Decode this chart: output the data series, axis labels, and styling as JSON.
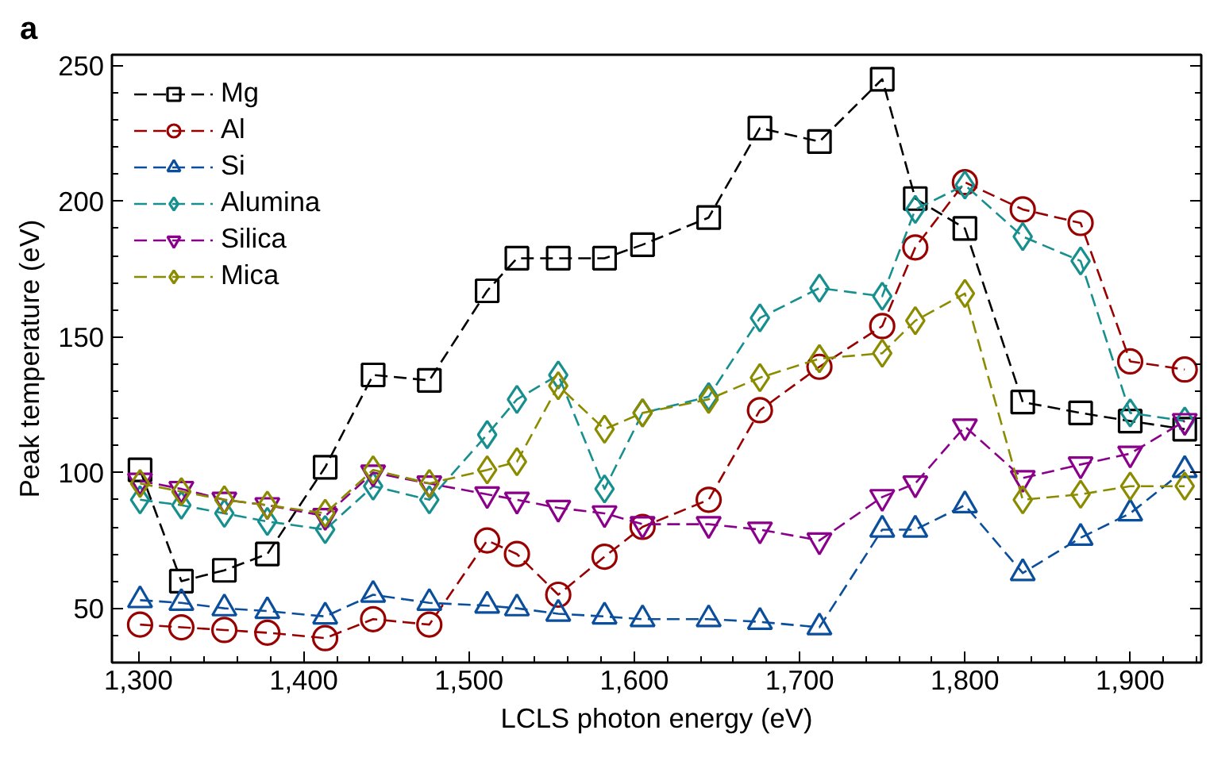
{
  "chart_data": {
    "type": "line",
    "xlabel": "LCLS photon energy (eV)",
    "ylabel": "Peak temperature (eV)",
    "annotations": [
      "a"
    ],
    "x": [
      1301,
      1326,
      1352,
      1378,
      1413,
      1442,
      1476,
      1511,
      1529,
      1554,
      1582,
      1605,
      1645,
      1676,
      1712,
      1750,
      1770,
      1800,
      1835,
      1870,
      1900,
      1933
    ],
    "series": [
      {
        "name": "Mg",
        "color": "#000000",
        "marker": "square",
        "values": [
          101,
          60,
          64,
          70,
          102,
          136,
          134,
          167,
          179,
          179,
          179,
          184,
          194,
          227,
          222,
          245,
          201,
          190,
          126,
          122,
          119,
          116
        ]
      },
      {
        "name": "Al",
        "color": "#990000",
        "marker": "circle",
        "values": [
          44,
          43,
          42,
          41,
          39,
          46,
          44,
          75,
          70,
          55,
          69,
          80,
          90,
          123,
          139,
          154,
          183,
          207,
          197,
          192,
          141,
          138
        ]
      },
      {
        "name": "Si",
        "color": "#0b4f9c",
        "marker": "triangle",
        "values": [
          53,
          52,
          50,
          49,
          47,
          55,
          52,
          51,
          50,
          48,
          47,
          46,
          46,
          45,
          43,
          79,
          79,
          88,
          63,
          76,
          85,
          101
        ]
      },
      {
        "name": "Alumina",
        "color": "#178f8f",
        "marker": "diamond",
        "values": [
          90,
          88,
          85,
          82,
          79,
          95,
          90,
          114,
          127,
          136,
          94,
          122,
          128,
          157,
          168,
          165,
          197,
          206,
          187,
          178,
          122,
          119
        ]
      },
      {
        "name": "Silica",
        "color": "#8b008b",
        "marker": "triangle",
        "values": [
          97,
          94,
          90,
          88,
          84,
          100,
          96,
          92,
          90,
          87,
          85,
          81,
          81,
          79,
          75,
          91,
          96,
          117,
          98,
          103,
          107,
          119
        ]
      },
      {
        "name": "Mica",
        "color": "#8b8b00",
        "marker": "diamond",
        "values": [
          96,
          93,
          90,
          88,
          85,
          101,
          96,
          101,
          104,
          132,
          116,
          122,
          127,
          135,
          142,
          144,
          156,
          166,
          90,
          92,
          95,
          95
        ]
      }
    ],
    "xlim": [
      1284,
      1943
    ],
    "ylim": [
      30,
      254
    ],
    "xticks": [
      {
        "value": 1300,
        "label": "1,300"
      },
      {
        "value": 1400,
        "label": "1,400"
      },
      {
        "value": 1500,
        "label": "1,500"
      },
      {
        "value": 1600,
        "label": "1,600"
      },
      {
        "value": 1700,
        "label": "1,700"
      },
      {
        "value": 1800,
        "label": "1,800"
      },
      {
        "value": 1900,
        "label": "1,900"
      }
    ],
    "yticks": [
      50,
      100,
      150,
      200,
      250
    ],
    "grid": false,
    "legend": "top left",
    "line_style": "dashed"
  }
}
